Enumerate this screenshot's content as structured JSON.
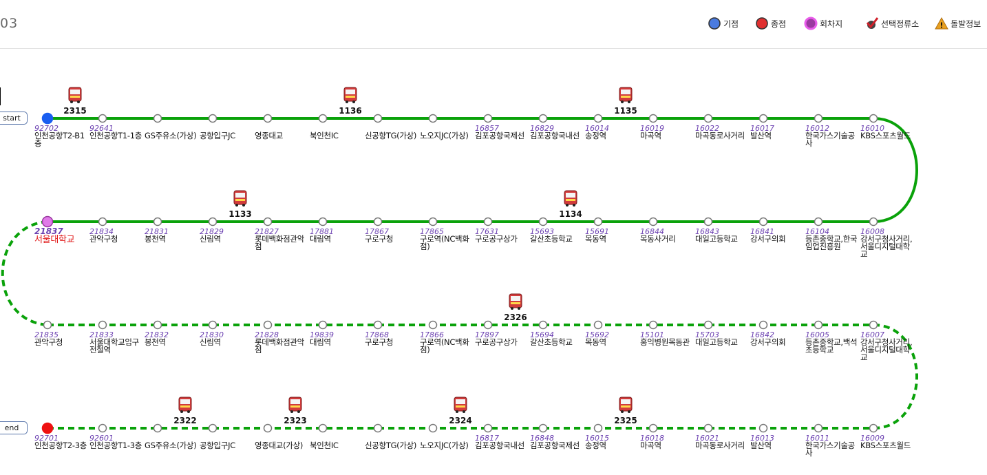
{
  "header": {
    "route_no": "03",
    "legend": [
      {
        "icon": "start-point-icon",
        "label": "기점",
        "color": "#4a7be0"
      },
      {
        "icon": "end-point-icon",
        "label": "종점",
        "color": "#e03030"
      },
      {
        "icon": "turnaround-icon",
        "label": "회차지",
        "color": "#d63fd6"
      },
      {
        "icon": "checkmark-icon",
        "label": "선택정류소",
        "color": "#d0202a"
      },
      {
        "icon": "warning-icon",
        "label": "돌발정보",
        "color": "#e8a020"
      }
    ]
  },
  "buttons": {
    "start_label": "start",
    "end_label": "end"
  },
  "colors": {
    "line": "#0aa20a",
    "start": "#1a5ef0",
    "end": "#ee1111",
    "turn": "#e07ae8"
  },
  "rows": [
    {
      "dashed": false,
      "stops": [
        {
          "id": "92702",
          "name": "인천공항T2-B1층"
        },
        {
          "id": "92641",
          "name": "인천공항T1-1층"
        },
        {
          "id": "",
          "name": "GS주유소(가상)"
        },
        {
          "id": "",
          "name": "공항입구JC"
        },
        {
          "id": "",
          "name": "영종대교"
        },
        {
          "id": "",
          "name": "북인천IC"
        },
        {
          "id": "",
          "name": "신공항TG(가상)"
        },
        {
          "id": "",
          "name": "노오지JC(가상)"
        },
        {
          "id": "16857",
          "name": "김포공항국제선"
        },
        {
          "id": "16829",
          "name": "김포공항국내선"
        },
        {
          "id": "16014",
          "name": "송정역"
        },
        {
          "id": "16019",
          "name": "마곡역"
        },
        {
          "id": "16022",
          "name": "마곡동로사거리"
        },
        {
          "id": "16017",
          "name": "발산역"
        },
        {
          "id": "16012",
          "name": "한국가스기술공사"
        },
        {
          "id": "16010",
          "name": "KBS스포츠월드"
        }
      ],
      "buses": [
        {
          "no": "2315",
          "stop": 0
        },
        {
          "no": "1136",
          "stop": 5
        },
        {
          "no": "1135",
          "stop": 10
        }
      ]
    },
    {
      "dashed": false,
      "stops": [
        {
          "id": "21837",
          "name": "서울대학교"
        },
        {
          "id": "21834",
          "name": "관악구청"
        },
        {
          "id": "21831",
          "name": "봉천역"
        },
        {
          "id": "21829",
          "name": "신림역"
        },
        {
          "id": "21827",
          "name": "롯데백화점관악점"
        },
        {
          "id": "17881",
          "name": "대림역"
        },
        {
          "id": "17867",
          "name": "구로구청"
        },
        {
          "id": "17865",
          "name": "구로역(NC백화점)"
        },
        {
          "id": "17631",
          "name": "구로공구상가"
        },
        {
          "id": "15693",
          "name": "갈산초등학교"
        },
        {
          "id": "15691",
          "name": "목동역"
        },
        {
          "id": "16844",
          "name": "목동사거리"
        },
        {
          "id": "16843",
          "name": "대일고등학교"
        },
        {
          "id": "16841",
          "name": "강서구의회"
        },
        {
          "id": "16104",
          "name": "등촌중학교,한국임업진흥원"
        },
        {
          "id": "16008",
          "name": "강서구청사거리,서울디지털대학교"
        }
      ],
      "buses": [
        {
          "no": "1133",
          "stop": 3
        },
        {
          "no": "1134",
          "stop": 9
        }
      ]
    },
    {
      "dashed": true,
      "stops": [
        {
          "id": "21835",
          "name": "관악구청"
        },
        {
          "id": "21833",
          "name": "서울대학교입구전철역"
        },
        {
          "id": "21832",
          "name": "봉천역"
        },
        {
          "id": "21830",
          "name": "신림역"
        },
        {
          "id": "21828",
          "name": "롯데백화점관악점"
        },
        {
          "id": "19839",
          "name": "대림역"
        },
        {
          "id": "17868",
          "name": "구로구청"
        },
        {
          "id": "17866",
          "name": "구로역(NC백화점)"
        },
        {
          "id": "17897",
          "name": "구로공구상가"
        },
        {
          "id": "15694",
          "name": "갈산초등학교"
        },
        {
          "id": "15692",
          "name": "목동역"
        },
        {
          "id": "15101",
          "name": "홍익병원목동관"
        },
        {
          "id": "15703",
          "name": "대일고등학교"
        },
        {
          "id": "16842",
          "name": "강서구의회"
        },
        {
          "id": "16005",
          "name": "등촌중학교,백석초등학교"
        },
        {
          "id": "16007",
          "name": "강서구청사거리,서울디지털대학교"
        }
      ],
      "buses": [
        {
          "no": "2326",
          "stop": 8
        }
      ]
    },
    {
      "dashed": true,
      "stops": [
        {
          "id": "92701",
          "name": "인천공항T2-3층"
        },
        {
          "id": "92601",
          "name": "인천공항T1-3층"
        },
        {
          "id": "",
          "name": "GS주유소(가상)"
        },
        {
          "id": "",
          "name": "공항입구JC"
        },
        {
          "id": "",
          "name": "영종대교(가상)"
        },
        {
          "id": "",
          "name": "북인천IC"
        },
        {
          "id": "",
          "name": "신공항TG(가상)"
        },
        {
          "id": "",
          "name": "노오지JC(가상)"
        },
        {
          "id": "16817",
          "name": "김포공항국내선"
        },
        {
          "id": "16848",
          "name": "김포공항국제선"
        },
        {
          "id": "16015",
          "name": "송정역"
        },
        {
          "id": "16018",
          "name": "마곡역"
        },
        {
          "id": "16021",
          "name": "마곡동로사거리"
        },
        {
          "id": "16013",
          "name": "발산역"
        },
        {
          "id": "16011",
          "name": "한국가스기술공사"
        },
        {
          "id": "16009",
          "name": "KBS스포츠월드"
        }
      ],
      "buses": [
        {
          "no": "2322",
          "stop": 2
        },
        {
          "no": "2323",
          "stop": 4
        },
        {
          "no": "2324",
          "stop": 7
        },
        {
          "no": "2325",
          "stop": 10
        }
      ]
    }
  ]
}
